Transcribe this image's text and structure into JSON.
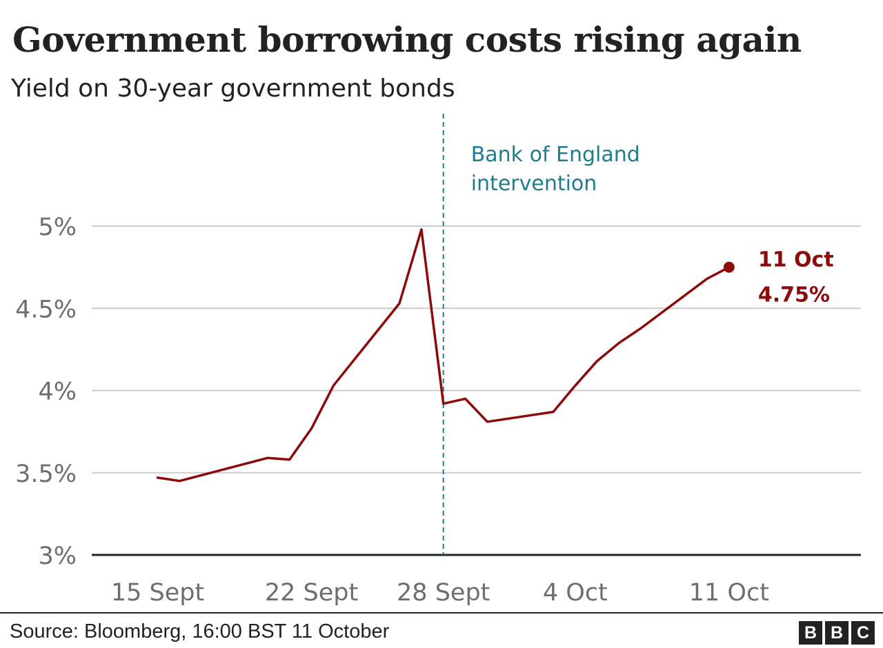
{
  "header": {
    "title": "Government borrowing costs rising again",
    "subtitle": "Yield on 30-year government bonds"
  },
  "footer": {
    "source": "Source: Bloomberg, 16:00 BST 11 October",
    "logo_letters": [
      "B",
      "B",
      "C"
    ]
  },
  "colors": {
    "series": "#8b0a0a",
    "annotation": "#1e7d8c",
    "grid": "#cccccc",
    "axis": "#222222",
    "tick_text": "#6e6e6e"
  },
  "chart_data": {
    "type": "line",
    "title": "Government borrowing costs rising again",
    "subtitle": "Yield on 30-year government bonds",
    "xlabel": "",
    "ylabel": "",
    "x_ticks": [
      {
        "label": "15 Sept",
        "date": "2022-09-15"
      },
      {
        "label": "22 Sept",
        "date": "2022-09-22"
      },
      {
        "label": "28 Sept",
        "date": "2022-09-28"
      },
      {
        "label": "4 Oct",
        "date": "2022-10-04"
      },
      {
        "label": "11 Oct",
        "date": "2022-10-11"
      }
    ],
    "y_ticks": [
      {
        "label": "3%",
        "value": 3.0
      },
      {
        "label": "3.5%",
        "value": 3.5
      },
      {
        "label": "4%",
        "value": 4.0
      },
      {
        "label": "4.5%",
        "value": 4.5
      },
      {
        "label": "5%",
        "value": 5.0
      }
    ],
    "ylim": [
      3.0,
      5.0
    ],
    "xlim": [
      "2022-09-12",
      "2022-10-17"
    ],
    "grid": true,
    "series": [
      {
        "name": "",
        "points": [
          {
            "x": "2022-09-15",
            "y": 3.47
          },
          {
            "x": "2022-09-16",
            "y": 3.45
          },
          {
            "x": "2022-09-20",
            "y": 3.59
          },
          {
            "x": "2022-09-21",
            "y": 3.58
          },
          {
            "x": "2022-09-22",
            "y": 3.77
          },
          {
            "x": "2022-09-23",
            "y": 4.03
          },
          {
            "x": "2022-09-26",
            "y": 4.53
          },
          {
            "x": "2022-09-27",
            "y": 4.98
          },
          {
            "x": "2022-09-28",
            "y": 3.92
          },
          {
            "x": "2022-09-29",
            "y": 3.95
          },
          {
            "x": "2022-09-30",
            "y": 3.81
          },
          {
            "x": "2022-10-03",
            "y": 3.87
          },
          {
            "x": "2022-10-04",
            "y": 4.03
          },
          {
            "x": "2022-10-05",
            "y": 4.18
          },
          {
            "x": "2022-10-06",
            "y": 4.29
          },
          {
            "x": "2022-10-07",
            "y": 4.38
          },
          {
            "x": "2022-10-10",
            "y": 4.68
          },
          {
            "x": "2022-10-11",
            "y": 4.75
          }
        ]
      }
    ],
    "annotations": [
      {
        "type": "vline",
        "x": "2022-09-28",
        "label_lines": [
          "Bank of England",
          "intervention"
        ]
      },
      {
        "type": "endpoint",
        "x": "2022-10-11",
        "y": 4.75,
        "label_lines": [
          "11 Oct",
          "4.75%"
        ]
      }
    ]
  }
}
